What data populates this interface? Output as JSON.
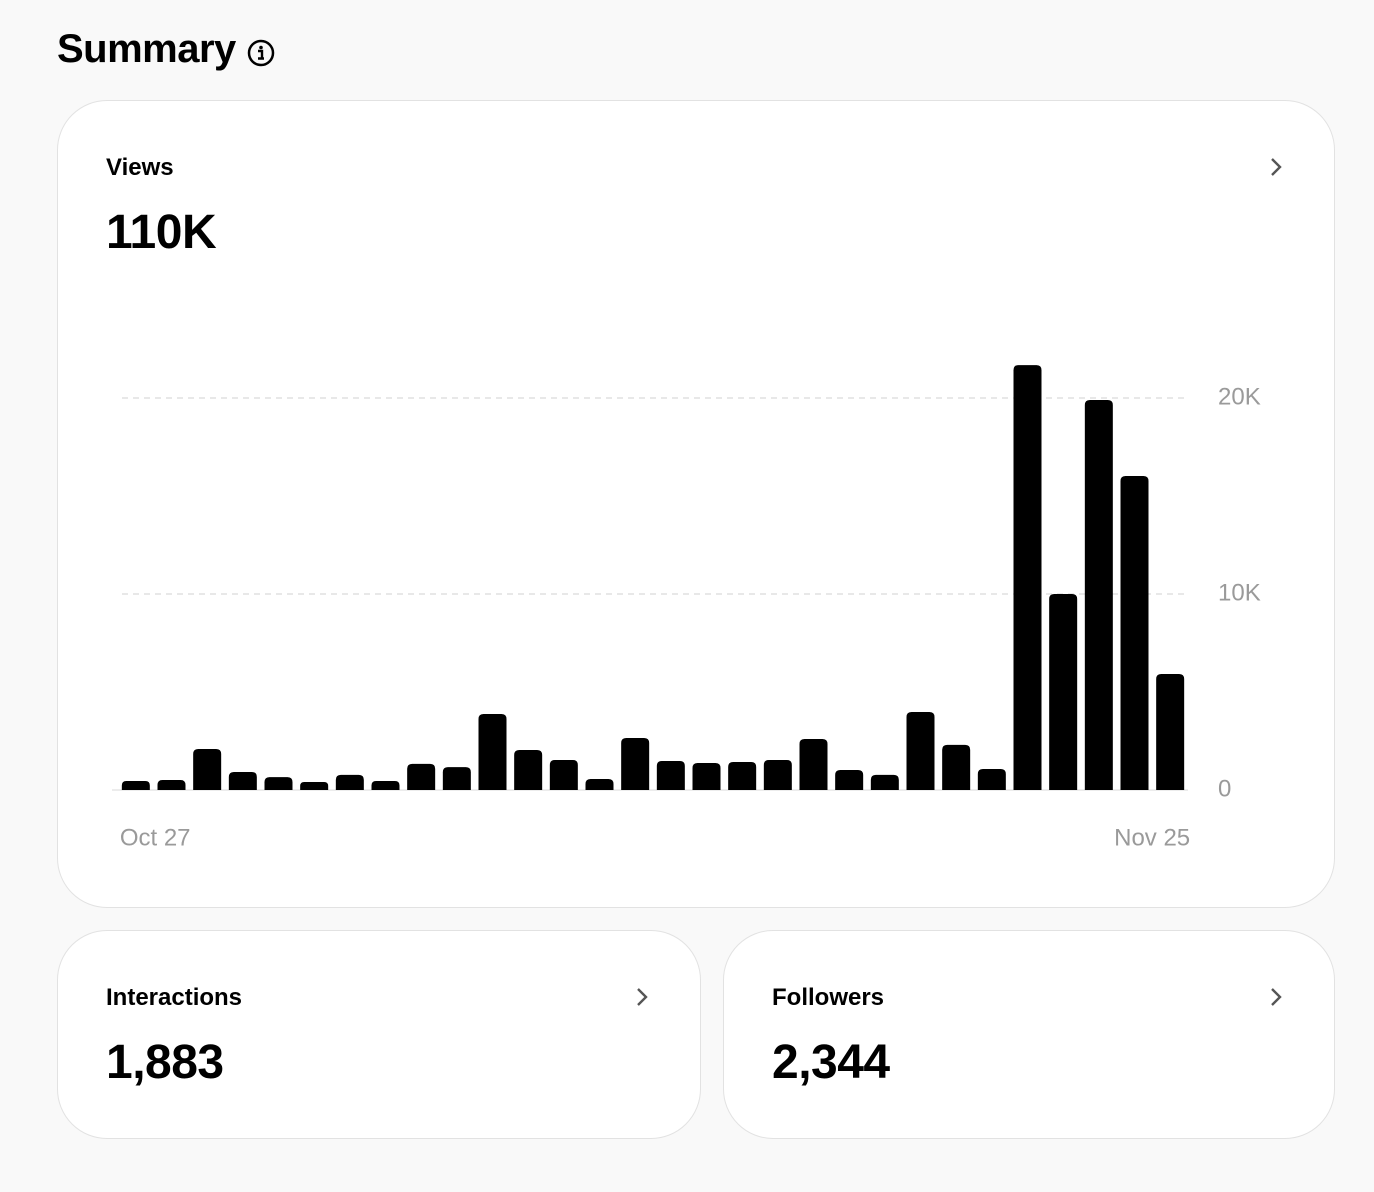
{
  "header": {
    "title": "Summary"
  },
  "cards": [
    {
      "label": "Views",
      "value": "110K"
    },
    {
      "label": "Interactions",
      "value": "1,883"
    },
    {
      "label": "Followers",
      "value": "2,344"
    }
  ],
  "chart_data": {
    "type": "bar",
    "categories": [
      "Oct 27",
      null,
      null,
      null,
      null,
      null,
      null,
      null,
      null,
      null,
      null,
      null,
      null,
      null,
      null,
      null,
      null,
      null,
      null,
      null,
      null,
      null,
      null,
      null,
      null,
      null,
      null,
      null,
      null,
      "Nov 25"
    ],
    "values": [
      460,
      510,
      2090,
      920,
      660,
      410,
      770,
      460,
      1330,
      1170,
      3880,
      2040,
      1530,
      560,
      2650,
      1480,
      1380,
      1430,
      1530,
      2600,
      1020,
      770,
      3980,
      2300,
      1070,
      21680,
      10000,
      19900,
      16020,
      5920
    ],
    "color": "#000000",
    "ylim": [
      0,
      22000
    ],
    "yticks": [
      0,
      {
        "value": 10000,
        "label": "10K"
      },
      {
        "value": 20000,
        "label": "20K"
      }
    ],
    "grid": true
  }
}
